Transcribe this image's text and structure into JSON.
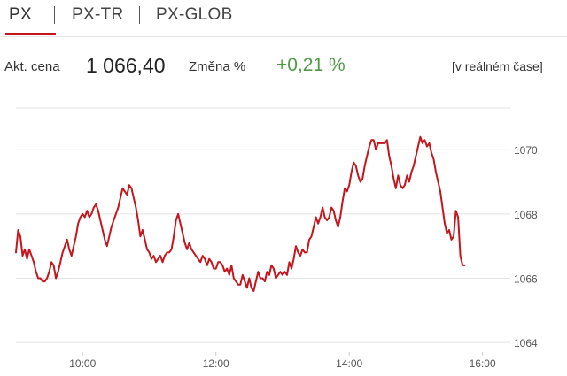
{
  "tabs": [
    {
      "label": "PX",
      "active": true
    },
    {
      "label": "PX-TR",
      "active": false
    },
    {
      "label": "PX-GLOB",
      "active": false
    }
  ],
  "quote": {
    "price_label": "Akt. cena",
    "price": "1 066,40",
    "change_label": "Změna %",
    "change": "+0,21 %",
    "realtime": "[v reálném čase]"
  },
  "colors": {
    "accent": "#c4161c",
    "positive": "#4f9a47",
    "grid": "#e3e3e3",
    "axis_text": "#555555"
  },
  "chart_data": {
    "type": "line",
    "title": "",
    "xlabel": "",
    "ylabel": "",
    "x_tick_labels": [
      "10:00",
      "12:00",
      "14:00",
      "16:00"
    ],
    "y_tick_labels": [
      "1070",
      "1068",
      "1066",
      "1064"
    ],
    "xlim": [
      "9:00",
      "16:25"
    ],
    "ylim": [
      1063.7,
      1071.3
    ],
    "grid": "horizontal",
    "legend": "none",
    "series": [
      {
        "color": "#c4161c",
        "points": [
          [
            "9:00",
            1066.8
          ],
          [
            "9:02",
            1067.5
          ],
          [
            "9:04",
            1067.3
          ],
          [
            "9:06",
            1066.7
          ],
          [
            "9:08",
            1066.9
          ],
          [
            "9:10",
            1066.6
          ],
          [
            "9:12",
            1066.9
          ],
          [
            "9:14",
            1066.7
          ],
          [
            "9:16",
            1066.5
          ],
          [
            "9:18",
            1066.2
          ],
          [
            "9:20",
            1066.0
          ],
          [
            "9:22",
            1066.0
          ],
          [
            "9:24",
            1065.9
          ],
          [
            "9:26",
            1065.9
          ],
          [
            "9:28",
            1066.0
          ],
          [
            "9:30",
            1066.2
          ],
          [
            "9:32",
            1066.5
          ],
          [
            "9:34",
            1066.4
          ],
          [
            "9:36",
            1066.0
          ],
          [
            "9:38",
            1066.2
          ],
          [
            "9:40",
            1066.5
          ],
          [
            "9:42",
            1066.8
          ],
          [
            "9:44",
            1067.0
          ],
          [
            "9:46",
            1067.2
          ],
          [
            "9:48",
            1066.9
          ],
          [
            "9:50",
            1066.7
          ],
          [
            "9:52",
            1067.0
          ],
          [
            "9:54",
            1067.3
          ],
          [
            "9:56",
            1067.7
          ],
          [
            "9:58",
            1067.9
          ],
          [
            "10:00",
            1068.0
          ],
          [
            "10:02",
            1067.9
          ],
          [
            "10:04",
            1068.1
          ],
          [
            "10:06",
            1067.9
          ],
          [
            "10:08",
            1068.0
          ],
          [
            "10:10",
            1068.2
          ],
          [
            "10:12",
            1068.3
          ],
          [
            "10:14",
            1068.1
          ],
          [
            "10:16",
            1067.8
          ],
          [
            "10:18",
            1067.5
          ],
          [
            "10:20",
            1067.2
          ],
          [
            "10:22",
            1067.0
          ],
          [
            "10:24",
            1067.3
          ],
          [
            "10:26",
            1067.6
          ],
          [
            "10:28",
            1067.8
          ],
          [
            "10:30",
            1068.0
          ],
          [
            "10:32",
            1068.2
          ],
          [
            "10:34",
            1068.5
          ],
          [
            "10:36",
            1068.8
          ],
          [
            "10:38",
            1068.7
          ],
          [
            "10:40",
            1068.6
          ],
          [
            "10:42",
            1068.9
          ],
          [
            "10:44",
            1068.8
          ],
          [
            "10:46",
            1068.5
          ],
          [
            "10:48",
            1068.2
          ],
          [
            "10:50",
            1067.8
          ],
          [
            "10:52",
            1067.3
          ],
          [
            "10:54",
            1067.5
          ],
          [
            "10:56",
            1067.2
          ],
          [
            "10:58",
            1066.9
          ],
          [
            "11:00",
            1066.8
          ],
          [
            "11:02",
            1066.6
          ],
          [
            "11:04",
            1066.7
          ],
          [
            "11:06",
            1066.5
          ],
          [
            "11:08",
            1066.6
          ],
          [
            "11:10",
            1066.7
          ],
          [
            "11:12",
            1066.5
          ],
          [
            "11:14",
            1066.7
          ],
          [
            "11:16",
            1066.8
          ],
          [
            "11:18",
            1066.8
          ],
          [
            "11:20",
            1066.9
          ],
          [
            "11:22",
            1067.3
          ],
          [
            "11:24",
            1067.8
          ],
          [
            "11:26",
            1068.0
          ],
          [
            "11:28",
            1067.7
          ],
          [
            "11:30",
            1067.4
          ],
          [
            "11:32",
            1067.1
          ],
          [
            "11:34",
            1066.9
          ],
          [
            "11:36",
            1067.1
          ],
          [
            "11:38",
            1066.9
          ],
          [
            "11:40",
            1066.8
          ],
          [
            "11:42",
            1066.7
          ],
          [
            "11:44",
            1066.6
          ],
          [
            "11:46",
            1066.5
          ],
          [
            "11:48",
            1066.7
          ],
          [
            "11:50",
            1066.6
          ],
          [
            "11:52",
            1066.4
          ],
          [
            "11:54",
            1066.6
          ],
          [
            "11:56",
            1066.5
          ],
          [
            "11:58",
            1066.3
          ],
          [
            "12:00",
            1066.3
          ],
          [
            "12:02",
            1066.5
          ],
          [
            "12:04",
            1066.5
          ],
          [
            "12:06",
            1066.4
          ],
          [
            "12:08",
            1066.2
          ],
          [
            "12:10",
            1066.3
          ],
          [
            "12:12",
            1066.1
          ],
          [
            "12:14",
            1066.4
          ],
          [
            "12:16",
            1066.0
          ],
          [
            "12:18",
            1065.9
          ],
          [
            "12:20",
            1065.8
          ],
          [
            "12:22",
            1065.8
          ],
          [
            "12:24",
            1066.1
          ],
          [
            "12:26",
            1065.9
          ],
          [
            "12:28",
            1065.7
          ],
          [
            "12:30",
            1066.0
          ],
          [
            "12:32",
            1065.7
          ],
          [
            "12:34",
            1065.6
          ],
          [
            "12:36",
            1065.9
          ],
          [
            "12:38",
            1066.2
          ],
          [
            "12:40",
            1066.0
          ],
          [
            "12:42",
            1066.0
          ],
          [
            "12:44",
            1065.9
          ],
          [
            "12:46",
            1066.2
          ],
          [
            "12:48",
            1066.1
          ],
          [
            "12:50",
            1066.4
          ],
          [
            "12:52",
            1066.3
          ],
          [
            "12:54",
            1066.0
          ],
          [
            "12:56",
            1066.1
          ],
          [
            "12:58",
            1066.2
          ],
          [
            "13:00",
            1066.1
          ],
          [
            "13:02",
            1066.2
          ],
          [
            "13:04",
            1066.1
          ],
          [
            "13:06",
            1066.5
          ],
          [
            "13:08",
            1066.3
          ],
          [
            "13:10",
            1066.6
          ],
          [
            "13:12",
            1067.0
          ],
          [
            "13:14",
            1066.8
          ],
          [
            "13:16",
            1066.7
          ],
          [
            "13:18",
            1066.9
          ],
          [
            "13:20",
            1066.8
          ],
          [
            "13:22",
            1066.8
          ],
          [
            "13:24",
            1067.2
          ],
          [
            "13:26",
            1067.3
          ],
          [
            "13:28",
            1067.6
          ],
          [
            "13:30",
            1067.9
          ],
          [
            "13:32",
            1067.7
          ],
          [
            "13:34",
            1067.9
          ],
          [
            "13:36",
            1068.2
          ],
          [
            "13:38",
            1067.9
          ],
          [
            "13:40",
            1067.8
          ],
          [
            "13:42",
            1067.9
          ],
          [
            "13:44",
            1068.2
          ],
          [
            "13:46",
            1068.1
          ],
          [
            "13:48",
            1067.8
          ],
          [
            "13:50",
            1067.6
          ],
          [
            "13:52",
            1067.9
          ],
          [
            "13:54",
            1068.4
          ],
          [
            "13:56",
            1068.8
          ],
          [
            "13:58",
            1068.7
          ],
          [
            "14:00",
            1068.9
          ],
          [
            "14:02",
            1069.3
          ],
          [
            "14:04",
            1069.6
          ],
          [
            "14:06",
            1069.5
          ],
          [
            "14:08",
            1069.2
          ],
          [
            "14:10",
            1069.0
          ],
          [
            "14:12",
            1069.1
          ],
          [
            "14:14",
            1069.5
          ],
          [
            "14:16",
            1069.8
          ],
          [
            "14:18",
            1070.1
          ],
          [
            "14:20",
            1070.3
          ],
          [
            "14:22",
            1070.3
          ],
          [
            "14:24",
            1070.0
          ],
          [
            "14:26",
            1070.2
          ],
          [
            "14:28",
            1070.2
          ],
          [
            "14:30",
            1070.2
          ],
          [
            "14:32",
            1070.2
          ],
          [
            "14:34",
            1070.3
          ],
          [
            "14:36",
            1069.8
          ],
          [
            "14:38",
            1069.5
          ],
          [
            "14:40",
            1069.1
          ],
          [
            "14:42",
            1068.8
          ],
          [
            "14:44",
            1069.2
          ],
          [
            "14:46",
            1068.9
          ],
          [
            "14:48",
            1068.8
          ],
          [
            "14:50",
            1068.9
          ],
          [
            "14:52",
            1069.2
          ],
          [
            "14:54",
            1069.0
          ],
          [
            "14:56",
            1069.3
          ],
          [
            "14:58",
            1069.5
          ],
          [
            "15:00",
            1069.8
          ],
          [
            "15:02",
            1070.1
          ],
          [
            "15:04",
            1070.4
          ],
          [
            "15:06",
            1070.2
          ],
          [
            "15:08",
            1070.3
          ],
          [
            "15:10",
            1070.1
          ],
          [
            "15:12",
            1070.2
          ],
          [
            "15:14",
            1069.9
          ],
          [
            "15:16",
            1069.7
          ],
          [
            "15:18",
            1069.3
          ],
          [
            "15:20",
            1069.0
          ],
          [
            "15:22",
            1068.7
          ],
          [
            "15:24",
            1068.2
          ],
          [
            "15:26",
            1067.7
          ],
          [
            "15:28",
            1067.4
          ],
          [
            "15:30",
            1067.5
          ],
          [
            "15:32",
            1067.2
          ],
          [
            "15:34",
            1067.3
          ],
          [
            "15:36",
            1068.1
          ],
          [
            "15:38",
            1067.9
          ],
          [
            "15:40",
            1066.7
          ],
          [
            "15:42",
            1066.4
          ],
          [
            "15:44",
            1066.4
          ]
        ]
      }
    ]
  }
}
